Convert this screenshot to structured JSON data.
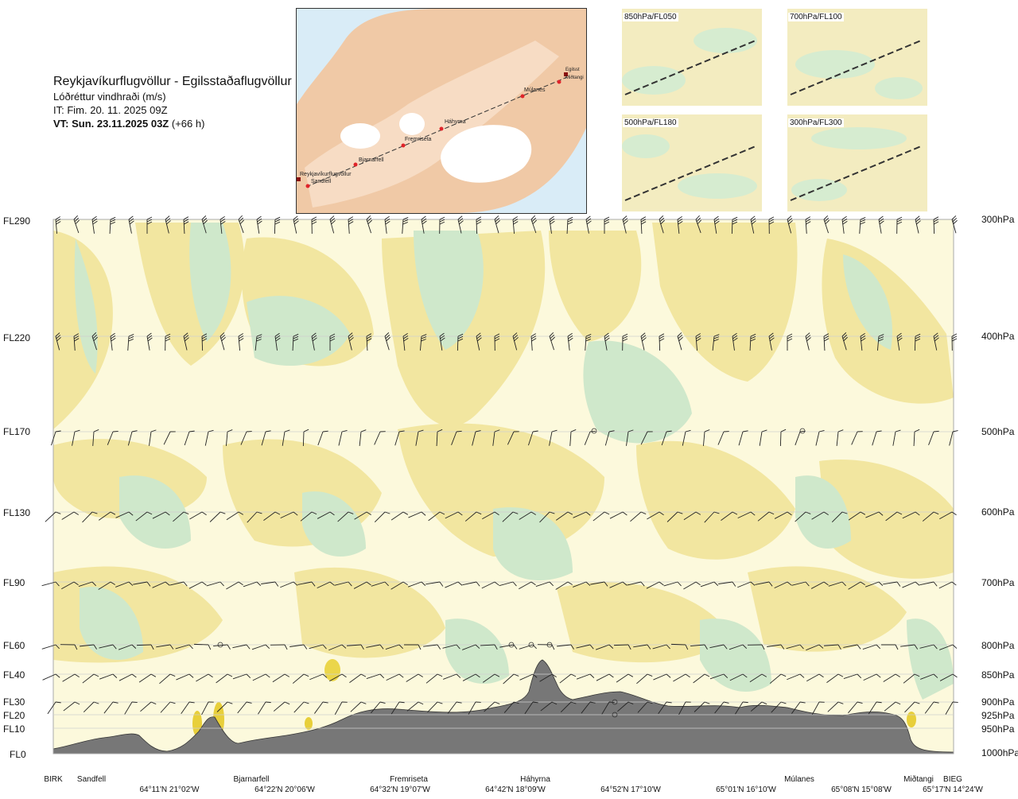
{
  "title": {
    "route": "Reykjavíkurflugvöllur - Egilsstaðaflugvöllur",
    "parameter": "Lóðréttur vindhraði (m/s)",
    "issue_time": "IT: Fim. 20. 11. 2025 09Z",
    "valid_time_bold": "VT: Sun. 23.11.2025 03Z",
    "valid_time_offset": "(+66 h)"
  },
  "map": {
    "places": [
      "Reykjavíkurflugvöllur",
      "Sandfell",
      "Bjarnarfell",
      "Fremriseta",
      "Háhyrna",
      "Múlanes",
      "Miðtangi",
      "Egilsst"
    ]
  },
  "thumbnails": [
    {
      "label": "850hPa/FL050"
    },
    {
      "label": "700hPa/FL100"
    },
    {
      "label": "500hPa/FL180"
    },
    {
      "label": "300hPa/FL300"
    }
  ],
  "chart_data": {
    "type": "heatmap",
    "title": "Lóðréttur vindhraði (m/s)",
    "flight_levels": [
      {
        "fl": "FL290",
        "hpa": "300hPa"
      },
      {
        "fl": "FL220",
        "hpa": "400hPa"
      },
      {
        "fl": "FL170",
        "hpa": "500hPa"
      },
      {
        "fl": "FL130",
        "hpa": "600hPa"
      },
      {
        "fl": "FL90",
        "hpa": "700hPa"
      },
      {
        "fl": "FL60",
        "hpa": "800hPa"
      },
      {
        "fl": "FL40",
        "hpa": "850hPa"
      },
      {
        "fl": "FL30",
        "hpa": "900hPa"
      },
      {
        "fl": "FL20",
        "hpa": "925hPa"
      },
      {
        "fl": "FL10",
        "hpa": "950hPa"
      },
      {
        "fl": "FL0",
        "hpa": "1000hPa"
      }
    ],
    "waypoints": [
      "BIRK",
      "Sandfell",
      "Bjarnarfell",
      "Fremriseta",
      "Háhyrna",
      "Múlanes",
      "Miðtangi",
      "BIEG"
    ],
    "coordinates": [
      "64°11'N 21°02'W",
      "64°22'N 20°06'W",
      "64°32'N 19°07'W",
      "64°42'N 18°09'W",
      "64°52'N 17°10'W",
      "65°01'N 16°10'W",
      "65°08'N 15°08'W",
      "65°17'N 14°24'W"
    ],
    "colors": {
      "updraft": "#f2e6a0",
      "weak": "#fcf9dc",
      "neutral": "#eef6e6",
      "downdraft": "#cfe8cb",
      "strong_up": "#e8cf3a",
      "terrain": "#777777"
    }
  }
}
